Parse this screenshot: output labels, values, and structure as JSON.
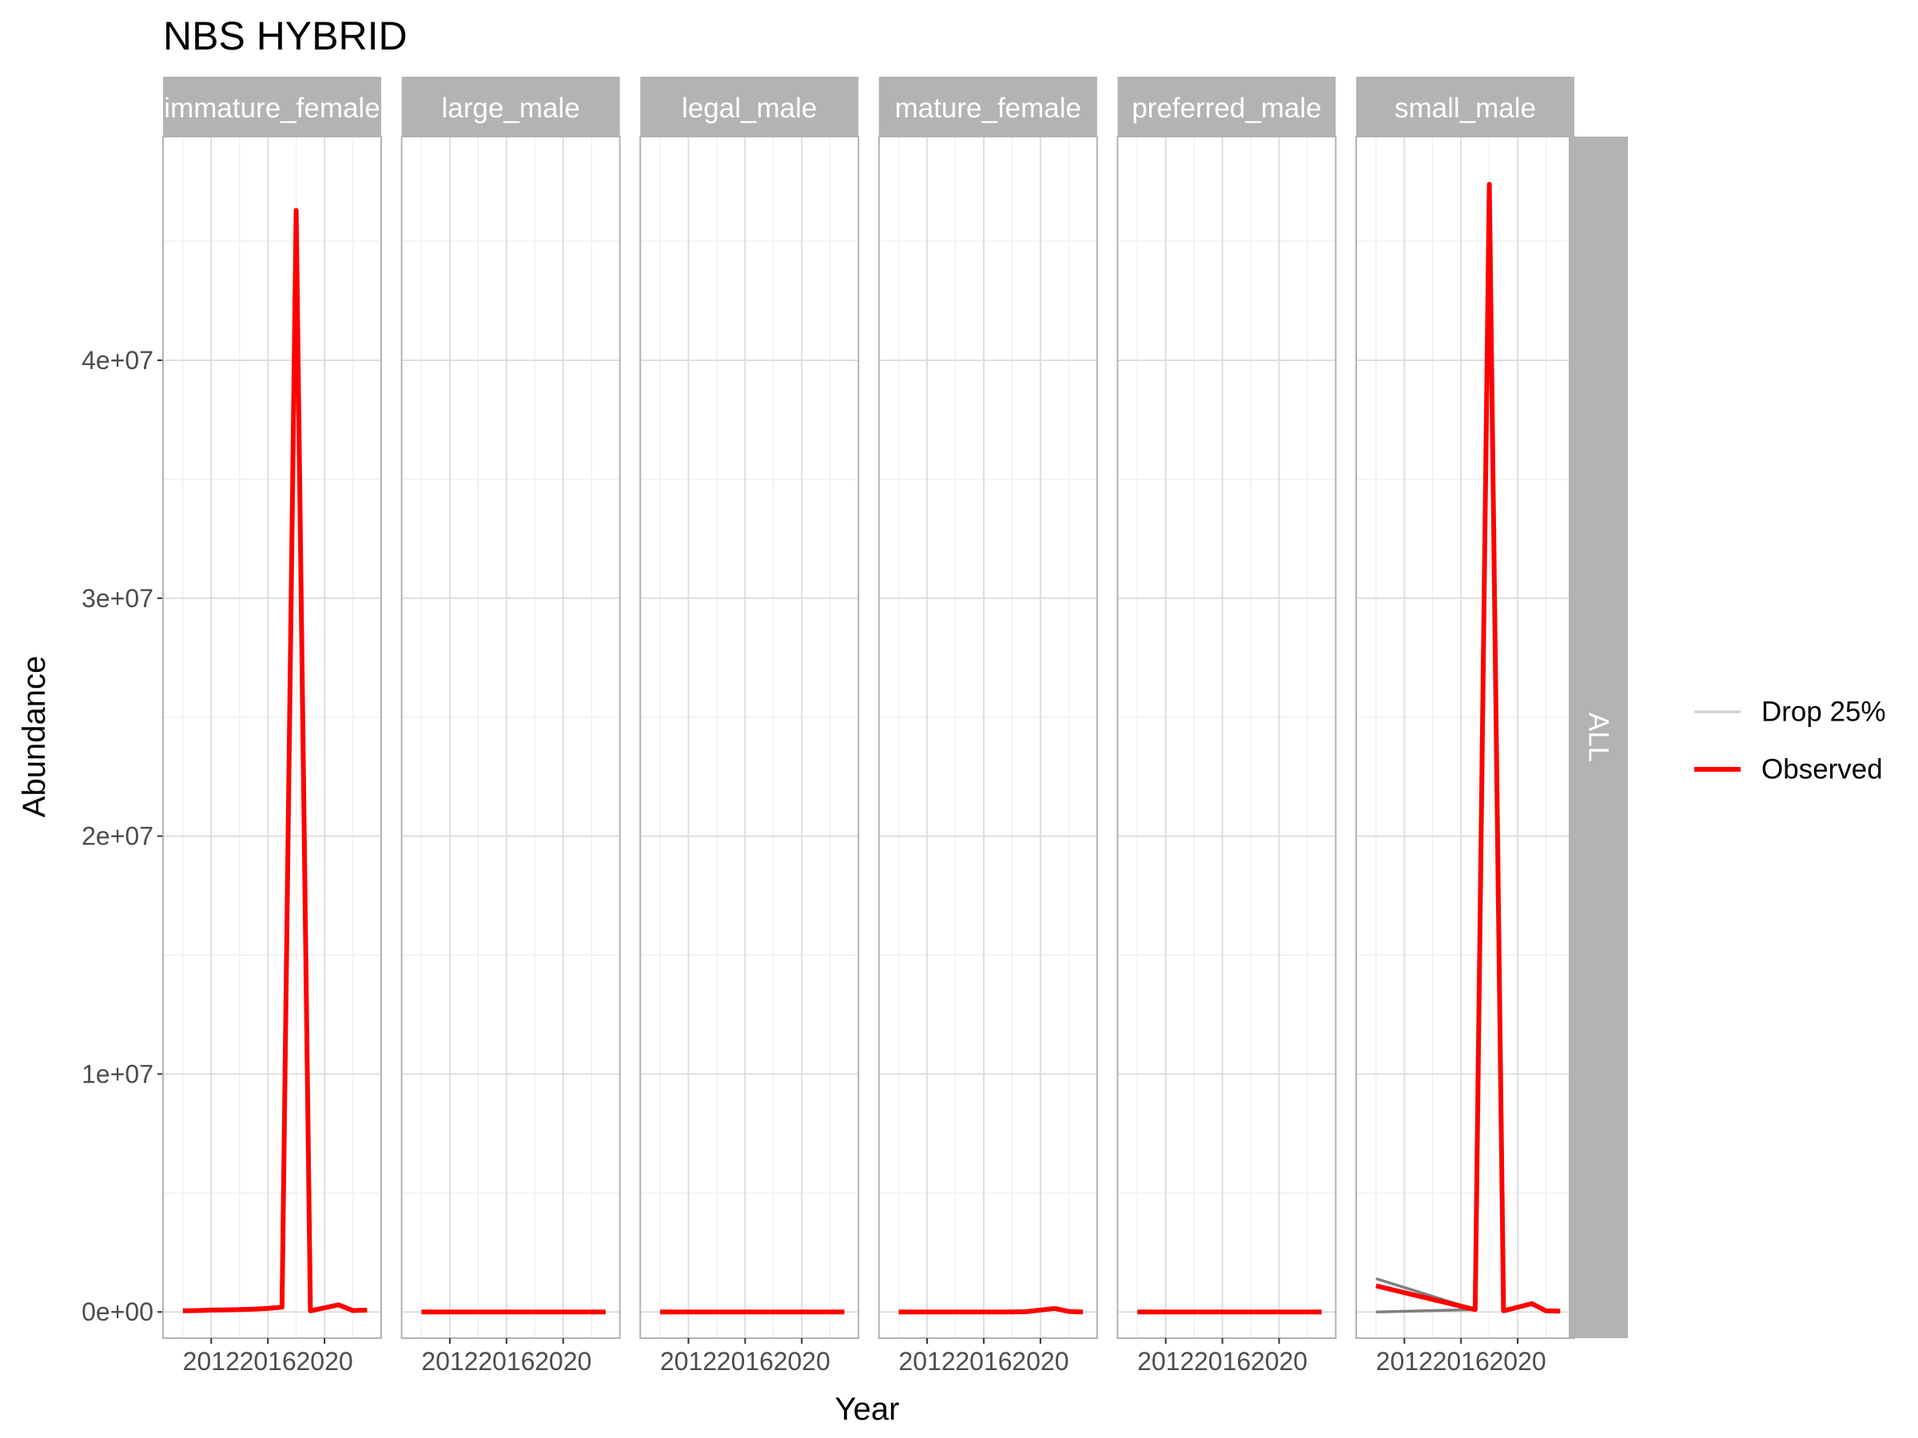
{
  "chart_data": {
    "type": "line",
    "title": "NBS HYBRID",
    "xlabel": "Year",
    "ylabel": "Abundance",
    "xlim": [
      2008.6,
      2024.0
    ],
    "ylim": [
      -1100000,
      49400000
    ],
    "x_ticks": [
      2012,
      2016,
      2020
    ],
    "x_tick_labels": [
      "2012",
      "2016",
      "2020"
    ],
    "y_ticks": [
      0,
      10000000,
      20000000,
      30000000,
      40000000
    ],
    "y_tick_labels": [
      "0e+00",
      "1e+07",
      "2e+07",
      "3e+07",
      "4e+07"
    ],
    "row_strip": "ALL",
    "grid": true,
    "legend_position": "right",
    "legend": [
      {
        "name": "Drop 25%",
        "color": "#d3d3d3"
      },
      {
        "name": "Observed",
        "color": "#ff0000"
      }
    ],
    "series_colors": {
      "Drop 25%": "#7f7f7f",
      "Observed": "#ff0000"
    },
    "panels": [
      {
        "name": "immature_female",
        "series": [
          {
            "name": "Observed",
            "x": [
              2010,
              2011,
              2012,
              2013,
              2014,
              2015,
              2016,
              2017,
              2018,
              2019,
              2021,
              2022,
              2023
            ],
            "y": [
              50000,
              60000,
              80000,
              90000,
              100000,
              120000,
              150000,
              200000,
              46300000,
              50000,
              300000,
              60000,
              80000
            ]
          }
        ]
      },
      {
        "name": "large_male",
        "series": [
          {
            "name": "Observed",
            "x": [
              2010,
              2011,
              2012,
              2013,
              2014,
              2015,
              2016,
              2017,
              2018,
              2019,
              2021,
              2022,
              2023
            ],
            "y": [
              0,
              0,
              0,
              0,
              0,
              0,
              0,
              0,
              0,
              0,
              0,
              0,
              0
            ]
          }
        ]
      },
      {
        "name": "legal_male",
        "series": [
          {
            "name": "Observed",
            "x": [
              2010,
              2011,
              2012,
              2013,
              2014,
              2015,
              2016,
              2017,
              2018,
              2019,
              2021,
              2022,
              2023
            ],
            "y": [
              0,
              0,
              0,
              0,
              0,
              0,
              0,
              0,
              0,
              0,
              0,
              0,
              0
            ]
          }
        ]
      },
      {
        "name": "mature_female",
        "series": [
          {
            "name": "Observed",
            "x": [
              2010,
              2011,
              2012,
              2013,
              2014,
              2015,
              2016,
              2017,
              2018,
              2019,
              2021,
              2022,
              2023
            ],
            "y": [
              0,
              0,
              0,
              0,
              0,
              0,
              0,
              0,
              0,
              10000,
              150000,
              20000,
              0
            ]
          }
        ]
      },
      {
        "name": "preferred_male",
        "series": [
          {
            "name": "Observed",
            "x": [
              2010,
              2011,
              2012,
              2013,
              2014,
              2015,
              2016,
              2017,
              2018,
              2019,
              2021,
              2022,
              2023
            ],
            "y": [
              0,
              0,
              0,
              0,
              0,
              0,
              0,
              0,
              0,
              0,
              0,
              0,
              0
            ]
          }
        ]
      },
      {
        "name": "small_male",
        "series": [
          {
            "name": "Drop 25%",
            "x": [
              2010,
              2017
            ],
            "y": [
              1400000,
              100000
            ]
          },
          {
            "name": "Drop 25%",
            "x": [
              2010,
              2017
            ],
            "y": [
              0,
              100000
            ]
          },
          {
            "name": "Observed",
            "x": [
              2010,
              2017,
              2018,
              2019,
              2021,
              2022,
              2023
            ],
            "y": [
              1100000,
              100000,
              47400000,
              50000,
              350000,
              50000,
              30000
            ]
          }
        ]
      }
    ]
  }
}
